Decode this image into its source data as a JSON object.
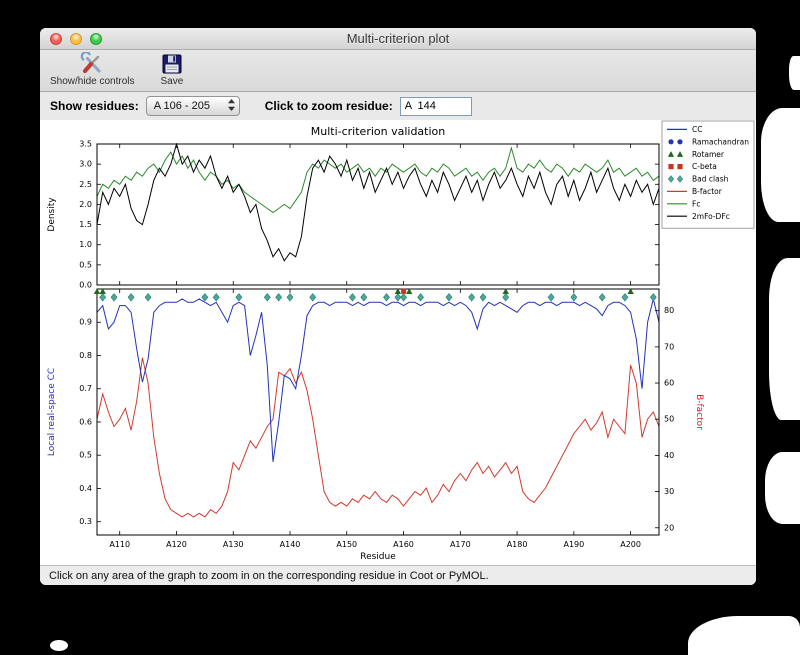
{
  "window": {
    "title": "Multi-criterion plot"
  },
  "toolbar": {
    "show_hide_label": "Show/hide controls",
    "save_label": "Save"
  },
  "controls": {
    "show_residues_label": "Show residues:",
    "residues_value": "A 106 - 205",
    "zoom_residue_label": "Click to zoom residue:",
    "zoom_residue_value": "A  144"
  },
  "status_bar": {
    "text": "Click on any area of the graph to zoom in on the corresponding residue in Coot or PyMOL."
  },
  "chart_data": {
    "type": "line",
    "title": "Multi-criterion validation",
    "x_label": "Residue",
    "x_start": 106,
    "x_end": 205,
    "x_tick_values": [
      110,
      120,
      130,
      140,
      150,
      160,
      170,
      180,
      190,
      200
    ],
    "x_tick_labels": [
      "A110",
      "A120",
      "A130",
      "A140",
      "A150",
      "A160",
      "A170",
      "A180",
      "A190",
      "A200"
    ],
    "top": {
      "ylabel": "Density",
      "ylim": [
        0.0,
        3.5
      ],
      "yticks": [
        0.0,
        0.5,
        1.0,
        1.5,
        2.0,
        2.5,
        3.0,
        3.5
      ],
      "series": [
        {
          "name": "Fc",
          "color": "#2d8a2d",
          "values": [
            2.2,
            2.5,
            2.4,
            2.6,
            2.5,
            2.7,
            2.6,
            2.8,
            2.7,
            2.9,
            3.0,
            2.8,
            3.1,
            3.3,
            3.0,
            3.2,
            2.9,
            3.1,
            2.8,
            2.6,
            2.8,
            2.7,
            2.5,
            2.6,
            2.4,
            2.5,
            2.3,
            2.2,
            2.1,
            2.0,
            1.9,
            1.8,
            1.9,
            2.0,
            1.9,
            2.1,
            2.3,
            2.8,
            3.0,
            2.9,
            3.1,
            3.0,
            2.9,
            3.0,
            2.8,
            2.9,
            3.0,
            2.8,
            2.9,
            2.7,
            2.9,
            2.8,
            3.0,
            2.9,
            2.8,
            2.9,
            3.0,
            2.8,
            2.7,
            2.9,
            2.8,
            3.0,
            2.9,
            2.7,
            2.8,
            2.9,
            2.7,
            2.8,
            2.6,
            2.8,
            2.9,
            2.7,
            2.9,
            3.4,
            2.9,
            2.8,
            3.0,
            2.9,
            3.1,
            2.9,
            2.8,
            3.0,
            2.9,
            2.7,
            2.9,
            2.8,
            3.0,
            2.9,
            2.8,
            2.9,
            3.1,
            2.8,
            2.9,
            2.7,
            2.8,
            2.9,
            2.7,
            2.8,
            2.6,
            2.7
          ]
        },
        {
          "name": "2mFo-DFc",
          "color": "#000000",
          "values": [
            1.5,
            2.3,
            2.0,
            2.4,
            2.2,
            2.5,
            1.9,
            1.6,
            1.5,
            2.0,
            2.6,
            2.9,
            2.7,
            3.0,
            3.5,
            3.0,
            3.2,
            2.8,
            3.1,
            2.9,
            3.2,
            2.7,
            2.4,
            2.7,
            2.3,
            2.5,
            2.2,
            1.8,
            2.0,
            1.4,
            1.1,
            0.7,
            0.9,
            0.6,
            0.8,
            0.7,
            1.2,
            2.2,
            2.9,
            3.1,
            2.8,
            3.2,
            3.0,
            2.7,
            3.1,
            2.6,
            2.9,
            2.4,
            2.8,
            2.3,
            2.6,
            2.9,
            2.5,
            2.8,
            2.4,
            2.7,
            2.9,
            2.5,
            2.2,
            2.6,
            2.3,
            2.8,
            2.5,
            2.1,
            2.4,
            2.7,
            2.3,
            2.6,
            2.1,
            2.5,
            2.8,
            2.4,
            2.6,
            2.9,
            2.5,
            2.2,
            2.7,
            2.4,
            2.8,
            2.3,
            2.0,
            2.5,
            2.7,
            2.2,
            2.6,
            2.1,
            2.4,
            2.8,
            2.3,
            2.6,
            2.9,
            2.4,
            2.1,
            2.5,
            2.2,
            2.6,
            2.3,
            2.5,
            2.0,
            2.4
          ]
        }
      ]
    },
    "bottom": {
      "ylabel_left": "Local real-space CC",
      "ylabel_left_color": "#2233bb",
      "ylim_left": [
        0.26,
        1.0
      ],
      "yticks_left": [
        0.3,
        0.4,
        0.5,
        0.6,
        0.7,
        0.8,
        0.9
      ],
      "ylabel_right": "B-factor",
      "ylabel_right_color": "#cc2222",
      "ylim_right": [
        18,
        86
      ],
      "yticks_right": [
        20,
        30,
        40,
        50,
        60,
        70,
        80
      ],
      "series_cc": {
        "name": "CC",
        "color": "#2233bb",
        "values": [
          0.93,
          0.95,
          0.88,
          0.9,
          0.95,
          0.95,
          0.93,
          0.82,
          0.72,
          0.79,
          0.93,
          0.95,
          0.96,
          0.96,
          0.96,
          0.97,
          0.96,
          0.96,
          0.97,
          0.96,
          0.95,
          0.96,
          0.93,
          0.9,
          0.95,
          0.96,
          0.95,
          0.8,
          0.86,
          0.93,
          0.77,
          0.48,
          0.6,
          0.74,
          0.73,
          0.7,
          0.8,
          0.92,
          0.95,
          0.96,
          0.96,
          0.95,
          0.96,
          0.96,
          0.96,
          0.95,
          0.96,
          0.95,
          0.96,
          0.96,
          0.96,
          0.95,
          0.96,
          0.96,
          0.95,
          0.96,
          0.96,
          0.95,
          0.96,
          0.96,
          0.96,
          0.95,
          0.96,
          0.95,
          0.96,
          0.95,
          0.93,
          0.88,
          0.94,
          0.96,
          0.95,
          0.96,
          0.95,
          0.94,
          0.93,
          0.95,
          0.96,
          0.96,
          0.95,
          0.96,
          0.96,
          0.95,
          0.96,
          0.96,
          0.96,
          0.95,
          0.96,
          0.95,
          0.94,
          0.92,
          0.95,
          0.96,
          0.96,
          0.95,
          0.93,
          0.85,
          0.7,
          0.9,
          0.97,
          0.9
        ]
      },
      "series_bfactor": {
        "name": "B-factor",
        "color": "#d23a2e",
        "values": [
          50,
          57,
          52,
          48,
          50,
          53,
          47,
          55,
          67,
          60,
          45,
          35,
          28,
          25,
          24,
          23,
          24,
          23,
          24,
          23,
          25,
          24,
          26,
          30,
          38,
          36,
          40,
          44,
          42,
          45,
          48,
          50,
          63,
          62,
          64,
          60,
          63,
          58,
          50,
          40,
          30,
          27,
          26,
          27,
          26,
          28,
          27,
          29,
          28,
          30,
          28,
          27,
          29,
          28,
          26,
          28,
          30,
          29,
          31,
          27,
          29,
          32,
          30,
          33,
          35,
          33,
          36,
          38,
          35,
          37,
          34,
          36,
          38,
          35,
          37,
          30,
          28,
          27,
          29,
          31,
          34,
          37,
          40,
          43,
          46,
          48,
          50,
          47,
          49,
          52,
          45,
          50,
          48,
          46,
          65,
          60,
          45,
          50,
          52,
          48
        ]
      },
      "markers": {
        "bad_clash": {
          "color": "#4aa99c",
          "y": 0.975,
          "residues": [
            107,
            109,
            112,
            115,
            125,
            127,
            131,
            136,
            138,
            140,
            144,
            151,
            153,
            157,
            159,
            160,
            163,
            168,
            172,
            174,
            178,
            186,
            190,
            195,
            199,
            204
          ]
        },
        "rotamer": {
          "color": "#226622",
          "y": 0.993,
          "residues": [
            106,
            107,
            159,
            161,
            178,
            200
          ]
        },
        "cbeta": {
          "color": "#cc3322",
          "y": 0.993,
          "residues": [
            160
          ]
        },
        "ramachandran": {
          "color": "#2233bb",
          "residues": []
        }
      }
    },
    "legend": [
      {
        "label": "CC",
        "marker": "line",
        "color": "#2233bb"
      },
      {
        "label": "Ramachandran",
        "marker": "circles",
        "color": "#2233bb"
      },
      {
        "label": "Rotamer",
        "marker": "triangles",
        "color": "#226622"
      },
      {
        "label": "C-beta",
        "marker": "squares",
        "color": "#cc3322"
      },
      {
        "label": "Bad clash",
        "marker": "diamonds",
        "color": "#4aa99c"
      },
      {
        "label": "B-factor",
        "marker": "line",
        "color": "#d23a2e"
      },
      {
        "label": "Fc",
        "marker": "line",
        "color": "#2d8a2d"
      },
      {
        "label": "2mFo-DFc",
        "marker": "line",
        "color": "#000000"
      }
    ]
  }
}
